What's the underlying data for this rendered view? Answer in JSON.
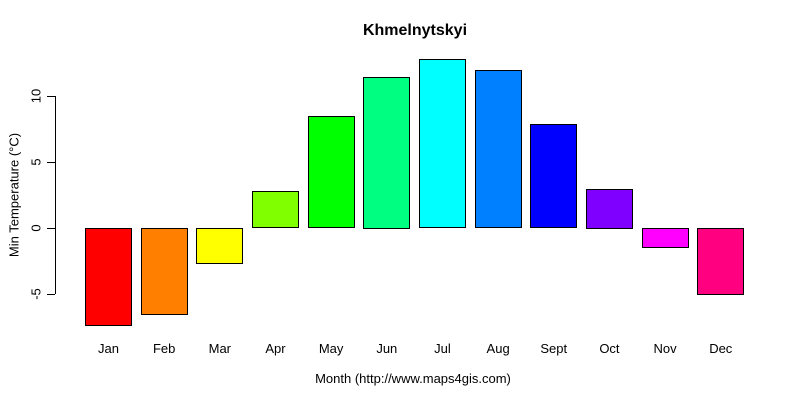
{
  "title": "Khmelnytskyi",
  "chart_data": {
    "type": "bar",
    "title": "Khmelnytskyi",
    "xlabel": "Month (http://www.maps4gis.com)",
    "ylabel": "Min Temperature (°C)",
    "categories": [
      "Jan",
      "Feb",
      "Mar",
      "Apr",
      "May",
      "Jun",
      "Jul",
      "Aug",
      "Sept",
      "Oct",
      "Nov",
      "Dec"
    ],
    "values": [
      -7.4,
      -6.6,
      -2.7,
      2.8,
      8.5,
      11.5,
      12.8,
      12.0,
      7.9,
      3.0,
      -1.5,
      -5.1
    ],
    "bar_colors": [
      "#FF0000",
      "#FF8000",
      "#FFFF00",
      "#80FF00",
      "#00FF00",
      "#00FF80",
      "#00FFFF",
      "#0080FF",
      "#0000FF",
      "#8000FF",
      "#FF00FF",
      "#FF0080"
    ],
    "bar_border_color": "#000000",
    "yticks": [
      -5,
      0,
      5,
      10
    ],
    "ylim": [
      -7.5,
      13
    ],
    "grid": false,
    "legend_position": "none",
    "background_color": "#FFFFFF",
    "axis_color": "#000000"
  }
}
